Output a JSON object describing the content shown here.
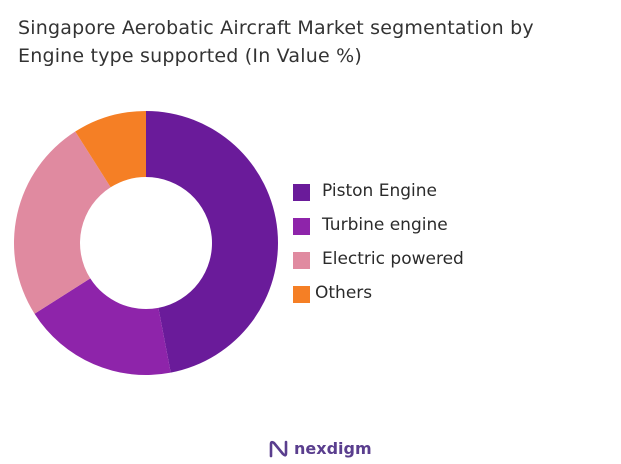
{
  "chart_data": {
    "type": "pie",
    "title_lines": [
      "Singapore Aerobatic Aircraft Market segmentation by",
      "Engine type supported (In Value %)"
    ],
    "categories": [
      "Piston Engine",
      "Turbine engine",
      "Electric powered",
      "Others"
    ],
    "values": [
      47,
      19,
      25,
      9
    ],
    "unit": "%",
    "colors": [
      "#6a1b9a",
      "#8e24aa",
      "#e08aa0",
      "#f57f25"
    ],
    "donut": true,
    "legend_position": "right"
  },
  "brand": {
    "name": "nexdigm",
    "icon": "nexdigm-logo-icon",
    "color": "#5a3e8e"
  }
}
